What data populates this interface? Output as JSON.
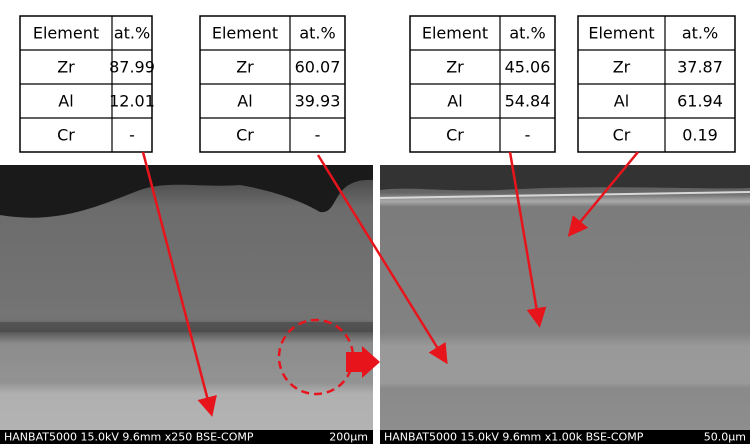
{
  "tables": [
    {
      "header": [
        "Element",
        "at.%"
      ],
      "rows": [
        [
          "Zr",
          "87.99"
        ],
        [
          "Al",
          "12.01"
        ],
        [
          "Cr",
          "-"
        ]
      ]
    },
    {
      "header": [
        "Element",
        "at.%"
      ],
      "rows": [
        [
          "Zr",
          "60.07"
        ],
        [
          "Al",
          "39.93"
        ],
        [
          "Cr",
          "-"
        ]
      ]
    },
    {
      "header": [
        "Element",
        "at.%"
      ],
      "rows": [
        [
          "Zr",
          "45.06"
        ],
        [
          "Al",
          "54.84"
        ],
        [
          "Cr",
          "-"
        ]
      ]
    },
    {
      "header": [
        "Element",
        "at.%"
      ],
      "rows": [
        [
          "Zr",
          "37.87"
        ],
        [
          "Al",
          "61.94"
        ],
        [
          "Cr",
          "0.19"
        ]
      ]
    }
  ],
  "images": [
    {
      "caption": "HANBAT5000 15.0kV 9.6mm x250 BSE-COMP",
      "scale": "200µm"
    },
    {
      "caption": "HANBAT5000 15.0kV 9.6mm x1.00k BSE-COMP",
      "scale": "50.0µm"
    }
  ]
}
